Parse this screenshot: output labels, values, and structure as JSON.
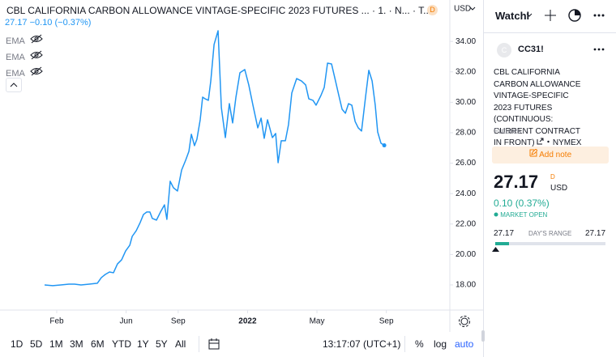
{
  "header": {
    "title": "CBL CALIFORNIA CARBON ALLOWANCE VINTAGE-SPECIFIC 2023 FUTURES ... · 1. · N... · T...",
    "badge": "D",
    "currency": "USD"
  },
  "legend": {
    "last": "27.17",
    "change": "−0.10 (−0.37%)",
    "indicators": [
      "EMA",
      "EMA",
      "EMA"
    ]
  },
  "chart_data": {
    "type": "line",
    "color": "#2196f3",
    "x": [
      1.3,
      1.77,
      2.23,
      2.7,
      3.03,
      3.4,
      3.87,
      4.34,
      4.57,
      4.8,
      5.04,
      5.27,
      5.5,
      5.74,
      5.97,
      6.21,
      6.35,
      6.58,
      6.81,
      7.0,
      7.19,
      7.37,
      7.51,
      7.75,
      7.98,
      8.21,
      8.35,
      8.54,
      8.73,
      8.96,
      9.2,
      9.43,
      9.62,
      9.76,
      9.94,
      10.08,
      10.27,
      10.41,
      10.55,
      10.74,
      10.88,
      11.07,
      11.3,
      11.49,
      11.72,
      11.95,
      12.14,
      12.33,
      12.56,
      12.84,
      13.07,
      13.31,
      13.59,
      13.78,
      13.96,
      14.15,
      14.43,
      14.62,
      14.76,
      14.94,
      15.18,
      15.36,
      15.55,
      15.83,
      16.11,
      16.35,
      16.53,
      16.77,
      16.95,
      17.23,
      17.42,
      17.61,
      17.84,
      18.07,
      18.26,
      18.45,
      18.64,
      18.82,
      19.01,
      19.2,
      19.38,
      19.57,
      19.8,
      19.99,
      20.18,
      20.36,
      20.5,
      20.69,
      20.88
    ],
    "values": [
      18.0,
      17.95,
      18.0,
      18.05,
      18.05,
      18.0,
      18.05,
      18.11,
      18.48,
      18.69,
      18.85,
      18.8,
      19.38,
      19.65,
      20.23,
      20.61,
      21.19,
      21.56,
      22.1,
      22.63,
      22.79,
      22.79,
      22.37,
      22.26,
      22.79,
      23.26,
      22.31,
      24.81,
      24.38,
      24.17,
      25.55,
      26.19,
      26.78,
      27.9,
      27.15,
      27.57,
      28.85,
      30.34,
      30.23,
      30.13,
      31.4,
      33.8,
      34.7,
      29.65,
      27.68,
      29.91,
      28.64,
      30.34,
      31.94,
      32.15,
      31.14,
      29.81,
      28.32,
      28.96,
      27.63,
      28.85,
      27.68,
      27.95,
      26.03,
      27.47,
      27.47,
      28.53,
      30.61,
      31.56,
      31.4,
      31.14,
      30.23,
      30.13,
      29.81,
      30.45,
      30.98,
      32.57,
      32.52,
      31.4,
      30.45,
      29.54,
      29.28,
      29.91,
      29.81,
      28.74,
      28.32,
      28.11,
      30.34,
      32.1,
      31.4,
      29.81,
      28.05,
      27.31,
      27.17
    ],
    "xlim": [
      -1.27,
      24.66
    ],
    "xticks": [
      {
        "value": 2,
        "label": "Feb"
      },
      {
        "value": 6,
        "label": "Jun"
      },
      {
        "value": 9,
        "label": "Sep"
      },
      {
        "value": 13,
        "label": "2022"
      },
      {
        "value": 17,
        "label": "May"
      },
      {
        "value": 21,
        "label": "Sep"
      }
    ],
    "ylim": [
      16.35,
      36.72
    ],
    "yticks": [
      {
        "value": 18,
        "label": "18.00"
      },
      {
        "value": 20,
        "label": "20.00"
      },
      {
        "value": 22,
        "label": "22.00"
      },
      {
        "value": 24,
        "label": "24.00"
      },
      {
        "value": 26,
        "label": "26.00"
      },
      {
        "value": 28,
        "label": "28.00"
      },
      {
        "value": 30,
        "label": "30.00"
      },
      {
        "value": 32,
        "label": "32.00"
      },
      {
        "value": 34,
        "label": "34.00"
      }
    ]
  },
  "toolbar": {
    "ranges": [
      "1D",
      "5D",
      "1M",
      "3M",
      "6M",
      "YTD",
      "1Y",
      "5Y",
      "All"
    ],
    "time": "13:17:07 (UTC+1)",
    "options": [
      "%",
      "log",
      "auto"
    ]
  },
  "watchlist": {
    "title": "Watchl",
    "logo": "C",
    "symbol": "CC31!",
    "description": "CBL CALIFORNIA CARBON ALLOWANCE VINTAGE-SPECIFIC 2023 FUTURES (CONTINUOUS: CURRENT CONTRACT IN FRONT)",
    "exchange": "NYMEX",
    "category": "Futures",
    "add_note": "Add note",
    "price": "27.17",
    "price_flag": "D",
    "currency": "USD",
    "change": "0.10 (0.37%)",
    "status": "MARKET OPEN",
    "range_low": "27.17",
    "range_label": "DAY'S RANGE",
    "range_high": "27.17"
  }
}
